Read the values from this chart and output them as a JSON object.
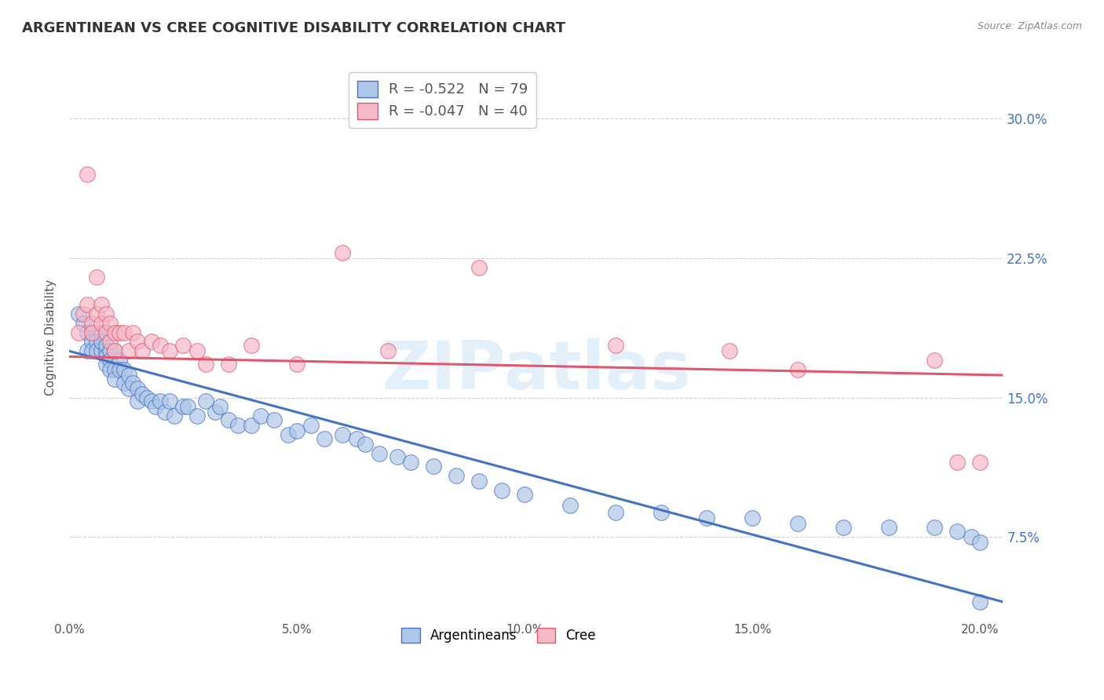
{
  "title": "ARGENTINEAN VS CREE COGNITIVE DISABILITY CORRELATION CHART",
  "source": "Source: ZipAtlas.com",
  "ylabel": "Cognitive Disability",
  "xlim": [
    0.0,
    0.205
  ],
  "ylim": [
    0.03,
    0.335
  ],
  "xtick_labels": [
    "0.0%",
    "",
    "5.0%",
    "",
    "10.0%",
    "",
    "15.0%",
    "",
    "20.0%"
  ],
  "xtick_values": [
    0.0,
    0.025,
    0.05,
    0.075,
    0.1,
    0.125,
    0.15,
    0.175,
    0.2
  ],
  "ytick_labels": [
    "7.5%",
    "15.0%",
    "22.5%",
    "30.0%"
  ],
  "ytick_values": [
    0.075,
    0.15,
    0.225,
    0.3
  ],
  "argentinean_color": "#aec6e8",
  "cree_color": "#f5b8c8",
  "argentinean_edge_color": "#4472c4",
  "cree_edge_color": "#e05870",
  "argentinean_line_color": "#4472c4",
  "cree_line_color": "#e05870",
  "R_argentinean": -0.522,
  "N_argentinean": 79,
  "R_cree": -0.047,
  "N_cree": 40,
  "legend_label_argentinean": "Argentineans",
  "legend_label_cree": "Cree",
  "watermark": "ZIPatlas",
  "argentinean_x": [
    0.002,
    0.003,
    0.004,
    0.004,
    0.005,
    0.005,
    0.005,
    0.006,
    0.006,
    0.006,
    0.007,
    0.007,
    0.007,
    0.008,
    0.008,
    0.008,
    0.008,
    0.009,
    0.009,
    0.009,
    0.01,
    0.01,
    0.01,
    0.011,
    0.011,
    0.012,
    0.012,
    0.013,
    0.013,
    0.014,
    0.015,
    0.015,
    0.016,
    0.017,
    0.018,
    0.019,
    0.02,
    0.021,
    0.022,
    0.023,
    0.025,
    0.026,
    0.028,
    0.03,
    0.032,
    0.033,
    0.035,
    0.037,
    0.04,
    0.042,
    0.045,
    0.048,
    0.05,
    0.053,
    0.056,
    0.06,
    0.063,
    0.065,
    0.068,
    0.072,
    0.075,
    0.08,
    0.085,
    0.09,
    0.095,
    0.1,
    0.11,
    0.12,
    0.13,
    0.14,
    0.15,
    0.16,
    0.17,
    0.18,
    0.19,
    0.195,
    0.198,
    0.2,
    0.2
  ],
  "argentinean_y": [
    0.195,
    0.19,
    0.185,
    0.175,
    0.185,
    0.18,
    0.175,
    0.185,
    0.18,
    0.175,
    0.185,
    0.175,
    0.18,
    0.175,
    0.178,
    0.172,
    0.168,
    0.175,
    0.17,
    0.165,
    0.175,
    0.165,
    0.16,
    0.17,
    0.165,
    0.165,
    0.158,
    0.162,
    0.155,
    0.158,
    0.155,
    0.148,
    0.152,
    0.15,
    0.148,
    0.145,
    0.148,
    0.142,
    0.148,
    0.14,
    0.145,
    0.145,
    0.14,
    0.148,
    0.142,
    0.145,
    0.138,
    0.135,
    0.135,
    0.14,
    0.138,
    0.13,
    0.132,
    0.135,
    0.128,
    0.13,
    0.128,
    0.125,
    0.12,
    0.118,
    0.115,
    0.113,
    0.108,
    0.105,
    0.1,
    0.098,
    0.092,
    0.088,
    0.088,
    0.085,
    0.085,
    0.082,
    0.08,
    0.08,
    0.08,
    0.078,
    0.075,
    0.072,
    0.04
  ],
  "cree_x": [
    0.002,
    0.003,
    0.004,
    0.004,
    0.005,
    0.005,
    0.006,
    0.006,
    0.007,
    0.007,
    0.008,
    0.008,
    0.009,
    0.009,
    0.01,
    0.01,
    0.011,
    0.012,
    0.013,
    0.014,
    0.015,
    0.016,
    0.018,
    0.02,
    0.022,
    0.025,
    0.028,
    0.03,
    0.035,
    0.04,
    0.05,
    0.06,
    0.07,
    0.09,
    0.12,
    0.145,
    0.16,
    0.19,
    0.195,
    0.2
  ],
  "cree_y": [
    0.185,
    0.195,
    0.27,
    0.2,
    0.19,
    0.185,
    0.215,
    0.195,
    0.2,
    0.19,
    0.195,
    0.185,
    0.19,
    0.18,
    0.185,
    0.175,
    0.185,
    0.185,
    0.175,
    0.185,
    0.18,
    0.175,
    0.18,
    0.178,
    0.175,
    0.178,
    0.175,
    0.168,
    0.168,
    0.178,
    0.168,
    0.228,
    0.175,
    0.22,
    0.178,
    0.175,
    0.165,
    0.17,
    0.115,
    0.115
  ],
  "arg_trend_x0": 0.0,
  "arg_trend_y0": 0.175,
  "arg_trend_x1": 0.205,
  "arg_trend_y1": 0.04,
  "cree_trend_x0": 0.0,
  "cree_trend_y0": 0.172,
  "cree_trend_x1": 0.205,
  "cree_trend_y1": 0.162
}
